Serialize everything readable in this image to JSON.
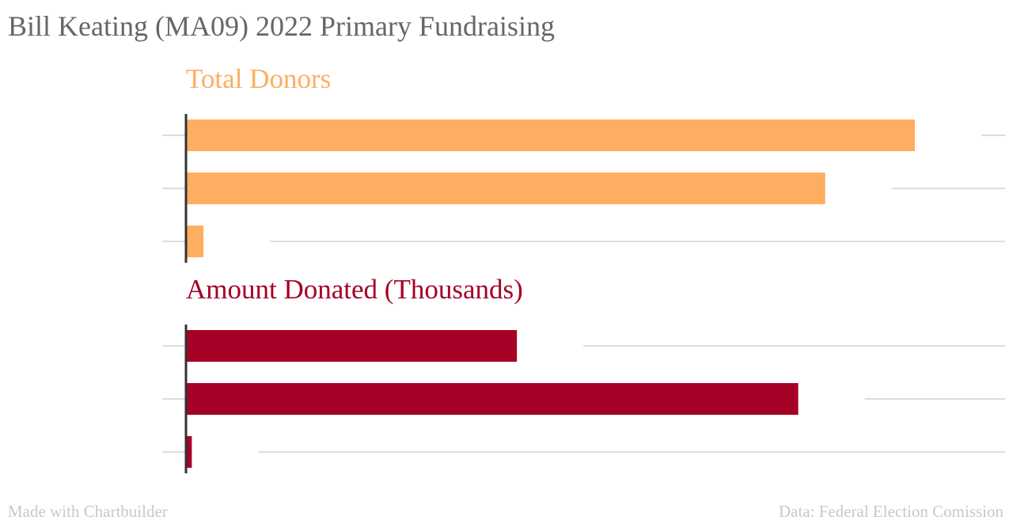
{
  "title": "Bill Keating (MA09) 2022 Primary Fundraising",
  "footer": {
    "credit": "Made with Chartbuilder",
    "source": "Data: Federal Election Comission"
  },
  "colors": {
    "title": "#666666",
    "donors": "#fdae61",
    "amount": "#a50026",
    "grid": "#dddddd",
    "axis": "#333333",
    "footer": "#c8c8c8"
  },
  "chart_data": [
    {
      "type": "bar",
      "orientation": "horizontal",
      "title": "Total Donors",
      "color": "#fdae61",
      "categories": [
        "",
        "",
        ""
      ],
      "values": [
        100,
        87.7,
        2.4
      ],
      "xlim": [
        0,
        100
      ],
      "grid": true,
      "tick_labels": false
    },
    {
      "type": "bar",
      "orientation": "horizontal",
      "title": "Amount Donated (Thousands)",
      "color": "#a50026",
      "categories": [
        "",
        "",
        ""
      ],
      "values": [
        45.4,
        84,
        0.8
      ],
      "xlim": [
        0,
        100
      ],
      "grid": true,
      "tick_labels": false
    }
  ]
}
